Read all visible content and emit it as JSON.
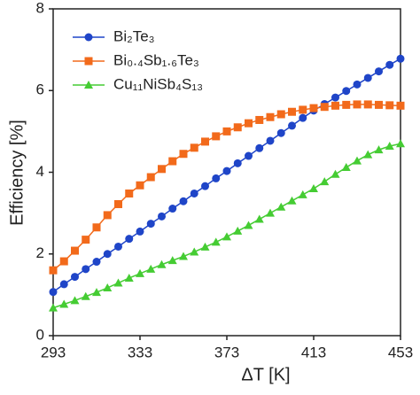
{
  "chart_data": {
    "type": "line",
    "xlabel": "ΔT [K]",
    "ylabel": "Efficiency [%]",
    "x": [
      293,
      298,
      303,
      308,
      313,
      318,
      323,
      328,
      333,
      338,
      343,
      348,
      353,
      358,
      363,
      368,
      373,
      378,
      383,
      388,
      393,
      398,
      403,
      408,
      413,
      418,
      423,
      428,
      433,
      438,
      443,
      448,
      453
    ],
    "series": [
      {
        "name": "Bi₂Te₃",
        "color": "#1f45c8",
        "marker": "circle",
        "values": [
          1.07,
          1.26,
          1.44,
          1.63,
          1.81,
          2.0,
          2.18,
          2.37,
          2.55,
          2.74,
          2.92,
          3.11,
          3.29,
          3.48,
          3.66,
          3.85,
          4.03,
          4.22,
          4.4,
          4.59,
          4.77,
          4.96,
          5.14,
          5.33,
          5.51,
          5.67,
          5.83,
          5.99,
          6.15,
          6.31,
          6.47,
          6.63,
          6.78
        ]
      },
      {
        "name": "Bi₀.₄Sb₁.₆Te₃",
        "color": "#f26a1b",
        "marker": "square",
        "values": [
          1.6,
          1.82,
          2.08,
          2.35,
          2.65,
          2.95,
          3.22,
          3.48,
          3.68,
          3.88,
          4.08,
          4.27,
          4.45,
          4.6,
          4.75,
          4.88,
          5.0,
          5.1,
          5.2,
          5.28,
          5.35,
          5.42,
          5.48,
          5.53,
          5.57,
          5.6,
          5.63,
          5.65,
          5.66,
          5.66,
          5.65,
          5.64,
          5.63
        ]
      },
      {
        "name": "Cu₁₁NiSb₄S₁₃",
        "color": "#45cc33",
        "marker": "triangle",
        "values": [
          0.68,
          0.77,
          0.86,
          0.96,
          1.06,
          1.17,
          1.29,
          1.41,
          1.52,
          1.63,
          1.74,
          1.84,
          1.94,
          2.05,
          2.17,
          2.29,
          2.42,
          2.56,
          2.7,
          2.85,
          3.0,
          3.15,
          3.3,
          3.45,
          3.6,
          3.77,
          3.95,
          4.12,
          4.28,
          4.43,
          4.55,
          4.64,
          4.7
        ]
      }
    ],
    "xlim": [
      293,
      453
    ],
    "xticks": [
      293,
      333,
      373,
      413,
      453
    ],
    "ylim": [
      0,
      8
    ],
    "yticks": [
      0,
      2,
      4,
      6,
      8
    ],
    "legend": "upper left",
    "grid": false
  }
}
